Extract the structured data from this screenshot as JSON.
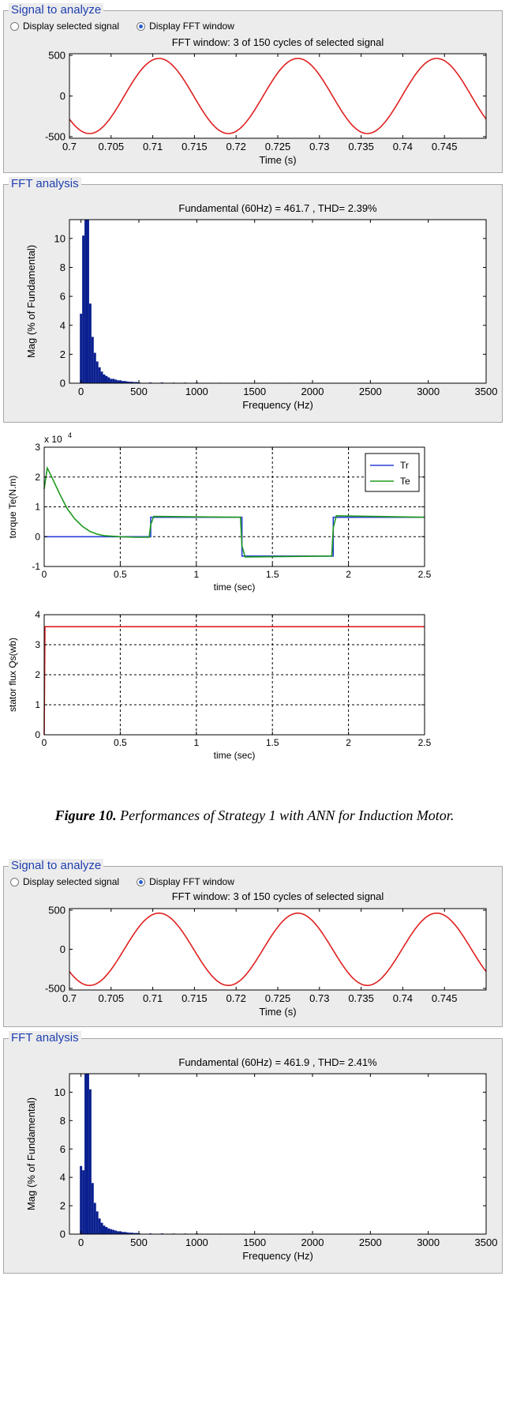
{
  "groups": {
    "signal1": {
      "title": "Signal to analyze",
      "radio1": "Display selected signal",
      "radio2": "Display FFT window"
    },
    "fft1": {
      "title": "FFT analysis"
    },
    "signal2": {
      "title": "Signal to analyze",
      "radio1": "Display selected signal",
      "radio2": "Display FFT window"
    },
    "fft2": {
      "title": "FFT analysis"
    }
  },
  "caption": {
    "figure": "Figure 10.",
    "text": " Performances of Strategy 1 with ANN for Induction Motor."
  },
  "chart_data": [
    {
      "id": "sig1",
      "type": "line",
      "title": "FFT window: 3 of 150 cycles of selected signal",
      "xlabel": "Time (s)",
      "ylabel": "",
      "xlim": [
        0.7,
        0.75
      ],
      "ylim": [
        -520,
        520
      ],
      "xticks": [
        0.7,
        0.705,
        0.71,
        0.715,
        0.72,
        0.725,
        0.73,
        0.735,
        0.74,
        0.745
      ],
      "xtick_labels": [
        "0.7",
        "0.705",
        "0.71",
        "0.715",
        "0.72",
        "0.725",
        "0.73",
        "0.735",
        "0.74",
        "0.745"
      ],
      "yticks": [
        -500,
        0,
        500
      ],
      "ytick_labels": [
        "-500",
        "0",
        "500"
      ],
      "grid": false,
      "series": [
        {
          "kind": "sine",
          "amplitude": 462,
          "frequency_hz": 60,
          "phase_deg": 218,
          "color": "#e02020"
        }
      ]
    },
    {
      "id": "fft1",
      "type": "bar",
      "title": "Fundamental (60Hz) = 461.7 , THD= 2.39%",
      "xlabel": "Frequency (Hz)",
      "ylabel": "Mag (% of Fundamental)",
      "xlim": [
        -100,
        3500
      ],
      "ylim": [
        0,
        11.3
      ],
      "xticks": [
        0,
        500,
        1000,
        1500,
        2000,
        2500,
        3000,
        3500
      ],
      "xtick_labels": [
        "0",
        "500",
        "1000",
        "1500",
        "2000",
        "2500",
        "3000",
        "3500"
      ],
      "yticks": [
        0,
        2,
        4,
        6,
        8,
        10
      ],
      "ytick_labels": [
        "0",
        "2",
        "4",
        "6",
        "8",
        "10"
      ],
      "grid": false,
      "color": "#0a1f8f",
      "bar_width_hz": 20,
      "x": [
        0,
        20,
        40,
        60,
        80,
        100,
        120,
        140,
        160,
        180,
        200,
        220,
        240,
        260,
        280,
        300,
        320,
        340,
        360,
        380,
        400,
        420,
        440,
        460,
        480,
        500,
        600,
        700,
        800,
        900,
        1000,
        1100,
        1200,
        1400,
        1600,
        1800,
        2000,
        2400,
        2800,
        3200
      ],
      "values": [
        4.8,
        10.2,
        11.3,
        11.3,
        5.5,
        3.2,
        2.1,
        1.5,
        1.1,
        0.8,
        0.6,
        0.5,
        0.4,
        0.3,
        0.3,
        0.25,
        0.2,
        0.2,
        0.15,
        0.15,
        0.12,
        0.1,
        0.1,
        0.08,
        0.08,
        0.06,
        0.05,
        0.05,
        0.04,
        0.04,
        0.05,
        0.03,
        0.03,
        0.03,
        0.03,
        0.03,
        0.02,
        0.02,
        0.02,
        0.02
      ]
    },
    {
      "id": "torque",
      "type": "line",
      "title": "",
      "multiplier_label": "x 10",
      "multiplier_exp": "4",
      "xlabel": "time (sec)",
      "ylabel": "torque Te(N.m)",
      "xlim": [
        0,
        2.5
      ],
      "ylim": [
        -1,
        3
      ],
      "xticks": [
        0,
        0.5,
        1,
        1.5,
        2,
        2.5
      ],
      "xtick_labels": [
        "0",
        "0.5",
        "1",
        "1.5",
        "2",
        "2.5"
      ],
      "yticks": [
        -1,
        0,
        1,
        2,
        3
      ],
      "ytick_labels": [
        "-1",
        "0",
        "1",
        "2",
        "3"
      ],
      "grid": true,
      "legend": "top-right",
      "series": [
        {
          "name": "Tr",
          "color": "#2a3fd8",
          "x": [
            0,
            0.7,
            0.7,
            1.3,
            1.3,
            1.9,
            1.9,
            2.5
          ],
          "y": [
            0,
            0,
            0.65,
            0.65,
            -0.65,
            -0.65,
            0.65,
            0.65
          ]
        },
        {
          "name": "Te",
          "color": "#1f9a1f",
          "x": [
            0,
            0.02,
            0.05,
            0.1,
            0.15,
            0.2,
            0.25,
            0.3,
            0.35,
            0.4,
            0.5,
            0.6,
            0.69,
            0.7,
            0.72,
            1.29,
            1.3,
            1.32,
            1.89,
            1.9,
            1.92,
            2.5
          ],
          "y": [
            1.6,
            2.3,
            2.0,
            1.45,
            0.95,
            0.6,
            0.35,
            0.18,
            0.08,
            0.03,
            0.0,
            -0.02,
            -0.02,
            0.4,
            0.68,
            0.65,
            -0.3,
            -0.68,
            -0.65,
            0.3,
            0.7,
            0.65
          ]
        }
      ]
    },
    {
      "id": "flux",
      "type": "line",
      "title": "",
      "xlabel": "time (sec)",
      "ylabel": "stator flux Qs(wb)",
      "xlim": [
        0,
        2.5
      ],
      "ylim": [
        0,
        4
      ],
      "xticks": [
        0,
        0.5,
        1,
        1.5,
        2,
        2.5
      ],
      "xtick_labels": [
        "0",
        "0.5",
        "1",
        "1.5",
        "2",
        "2.5"
      ],
      "yticks": [
        0,
        1,
        2,
        3,
        4
      ],
      "ytick_labels": [
        "0",
        "1",
        "2",
        "3",
        "4"
      ],
      "grid": true,
      "series": [
        {
          "color": "#e02020",
          "x": [
            0,
            0.005,
            0.01,
            2.5
          ],
          "y": [
            0,
            3.6,
            3.6,
            3.6
          ]
        }
      ]
    },
    {
      "id": "sig2",
      "type": "line",
      "title": "FFT window: 3 of 150 cycles of selected signal",
      "xlabel": "Time (s)",
      "ylabel": "",
      "xlim": [
        0.7,
        0.75
      ],
      "ylim": [
        -520,
        520
      ],
      "xticks": [
        0.7,
        0.705,
        0.71,
        0.715,
        0.72,
        0.725,
        0.73,
        0.735,
        0.74,
        0.745
      ],
      "xtick_labels": [
        "0.7",
        "0.705",
        "0.71",
        "0.715",
        "0.72",
        "0.725",
        "0.73",
        "0.735",
        "0.74",
        "0.745"
      ],
      "yticks": [
        -500,
        0,
        500
      ],
      "ytick_labels": [
        "-500",
        "0",
        "500"
      ],
      "grid": false,
      "series": [
        {
          "kind": "sine",
          "amplitude": 462,
          "frequency_hz": 60,
          "phase_deg": 218,
          "color": "#e02020"
        }
      ]
    },
    {
      "id": "fft2",
      "type": "bar",
      "title": "Fundamental (60Hz) = 461.9 , THD= 2.41%",
      "xlabel": "Frequency (Hz)",
      "ylabel": "Mag (% of Fundamental)",
      "xlim": [
        -100,
        3500
      ],
      "ylim": [
        0,
        11.3
      ],
      "xticks": [
        0,
        500,
        1000,
        1500,
        2000,
        2500,
        3000,
        3500
      ],
      "xtick_labels": [
        "0",
        "500",
        "1000",
        "1500",
        "2000",
        "2500",
        "3000",
        "3500"
      ],
      "yticks": [
        0,
        2,
        4,
        6,
        8,
        10
      ],
      "ytick_labels": [
        "0",
        "2",
        "4",
        "6",
        "8",
        "10"
      ],
      "grid": false,
      "color": "#0a1f8f",
      "bar_width_hz": 20,
      "x": [
        0,
        20,
        40,
        60,
        80,
        100,
        120,
        140,
        160,
        180,
        200,
        220,
        240,
        260,
        280,
        300,
        320,
        340,
        360,
        380,
        400,
        420,
        440,
        460,
        480,
        500,
        600,
        700,
        800,
        900,
        1000,
        1100,
        1200,
        1400,
        1600,
        1800,
        2000,
        2400,
        2800,
        3200
      ],
      "values": [
        4.8,
        4.5,
        11.3,
        11.3,
        10.2,
        3.6,
        2.2,
        1.6,
        1.1,
        0.8,
        0.6,
        0.5,
        0.4,
        0.35,
        0.3,
        0.25,
        0.2,
        0.2,
        0.15,
        0.15,
        0.12,
        0.1,
        0.1,
        0.08,
        0.08,
        0.06,
        0.05,
        0.05,
        0.04,
        0.04,
        0.05,
        0.03,
        0.03,
        0.03,
        0.03,
        0.03,
        0.02,
        0.02,
        0.02,
        0.02
      ]
    }
  ]
}
